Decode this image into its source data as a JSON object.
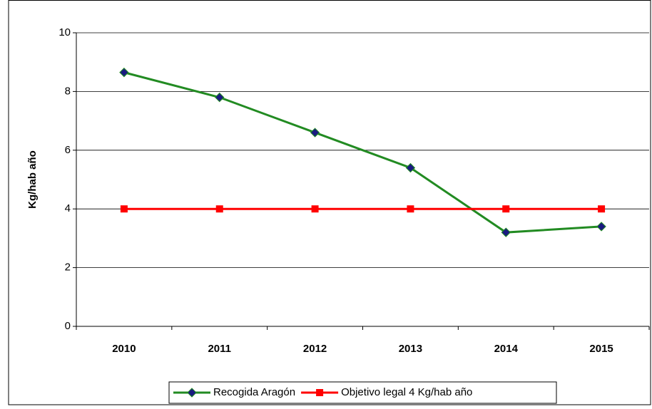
{
  "chart_data": {
    "type": "line",
    "y_label": "Kg/hab año",
    "categories": [
      "2010",
      "2011",
      "2012",
      "2013",
      "2014",
      "2015"
    ],
    "series": [
      {
        "name": "Recogida Aragón",
        "color": "#228b22",
        "marker_color": "#1a1a80",
        "marker": "diamond",
        "values": [
          8.65,
          7.8,
          6.6,
          5.4,
          3.2,
          3.4
        ]
      },
      {
        "name": "Objetivo legal 4 Kg/hab año",
        "color": "#ff0000",
        "marker_color": "#ff0000",
        "marker": "square",
        "values": [
          4,
          4,
          4,
          4,
          4,
          4
        ]
      }
    ],
    "ylim": [
      0,
      10
    ],
    "yticks": [
      0,
      2,
      4,
      6,
      8,
      10
    ],
    "grid": true,
    "legend": "bottom"
  }
}
